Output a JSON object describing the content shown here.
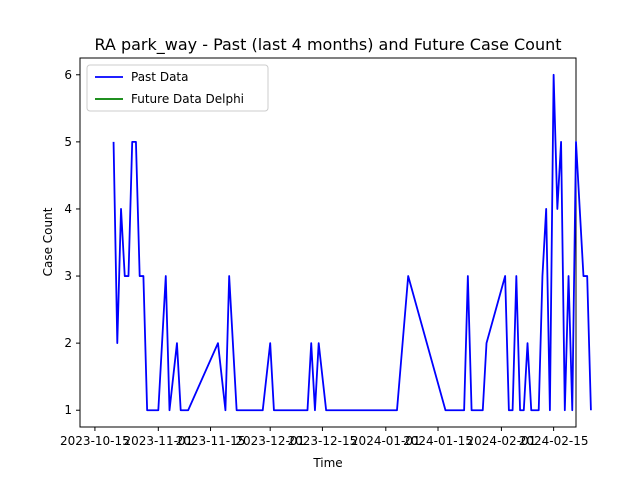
{
  "chart_data": {
    "type": "line",
    "title": "RA park_way - Past (last 4 months) and Future Case Count",
    "xlabel": "Time",
    "ylabel": "Case Count",
    "xlim": [
      "2023-10-11",
      "2024-02-21"
    ],
    "ylim": [
      0.75,
      6.25
    ],
    "y_ticks": [
      1,
      2,
      3,
      4,
      5,
      6
    ],
    "x_ticks": [
      "2023-10-15",
      "2023-11-01",
      "2023-11-15",
      "2023-12-01",
      "2023-12-15",
      "2024-01-01",
      "2024-01-15",
      "2024-02-01",
      "2024-02-15"
    ],
    "grid": false,
    "legend_position": "top-left",
    "series": [
      {
        "name": "Past Data",
        "color": "#0000ff",
        "points": [
          [
            "2023-10-20",
            5
          ],
          [
            "2023-10-21",
            2
          ],
          [
            "2023-10-22",
            4
          ],
          [
            "2023-10-23",
            3
          ],
          [
            "2023-10-24",
            3
          ],
          [
            "2023-10-25",
            5
          ],
          [
            "2023-10-26",
            5
          ],
          [
            "2023-10-27",
            3
          ],
          [
            "2023-10-28",
            3
          ],
          [
            "2023-10-29",
            1
          ],
          [
            "2023-11-01",
            1
          ],
          [
            "2023-11-03",
            3
          ],
          [
            "2023-11-04",
            1
          ],
          [
            "2023-11-06",
            2
          ],
          [
            "2023-11-07",
            1
          ],
          [
            "2023-11-09",
            1
          ],
          [
            "2023-11-17",
            2
          ],
          [
            "2023-11-19",
            1
          ],
          [
            "2023-11-20",
            3
          ],
          [
            "2023-11-22",
            1
          ],
          [
            "2023-11-29",
            1
          ],
          [
            "2023-12-01",
            2
          ],
          [
            "2023-12-02",
            1
          ],
          [
            "2023-12-11",
            1
          ],
          [
            "2023-12-12",
            2
          ],
          [
            "2023-12-13",
            1
          ],
          [
            "2023-12-14",
            2
          ],
          [
            "2023-12-16",
            1
          ],
          [
            "2024-01-04",
            1
          ],
          [
            "2024-01-07",
            3
          ],
          [
            "2024-01-17",
            1
          ],
          [
            "2024-01-22",
            1
          ],
          [
            "2024-01-23",
            3
          ],
          [
            "2024-01-24",
            1
          ],
          [
            "2024-01-27",
            1
          ],
          [
            "2024-01-28",
            2
          ],
          [
            "2024-02-02",
            3
          ],
          [
            "2024-02-03",
            1
          ],
          [
            "2024-02-04",
            1
          ],
          [
            "2024-02-05",
            3
          ],
          [
            "2024-02-06",
            1
          ],
          [
            "2024-02-07",
            1
          ],
          [
            "2024-02-08",
            2
          ],
          [
            "2024-02-09",
            1
          ],
          [
            "2024-02-11",
            1
          ],
          [
            "2024-02-12",
            3
          ],
          [
            "2024-02-13",
            4
          ],
          [
            "2024-02-14",
            1
          ],
          [
            "2024-02-15",
            6
          ],
          [
            "2024-02-16",
            4
          ],
          [
            "2024-02-17",
            5
          ],
          [
            "2024-02-18",
            1
          ],
          [
            "2024-02-19",
            3
          ],
          [
            "2024-02-20",
            1
          ],
          [
            "2024-02-21",
            5
          ],
          [
            "2024-02-22",
            4
          ],
          [
            "2024-02-23",
            3
          ],
          [
            "2024-02-24",
            3
          ],
          [
            "2024-02-25",
            1
          ]
        ]
      },
      {
        "name": "Future Data Delphi",
        "color": "#008000",
        "points": []
      }
    ]
  }
}
